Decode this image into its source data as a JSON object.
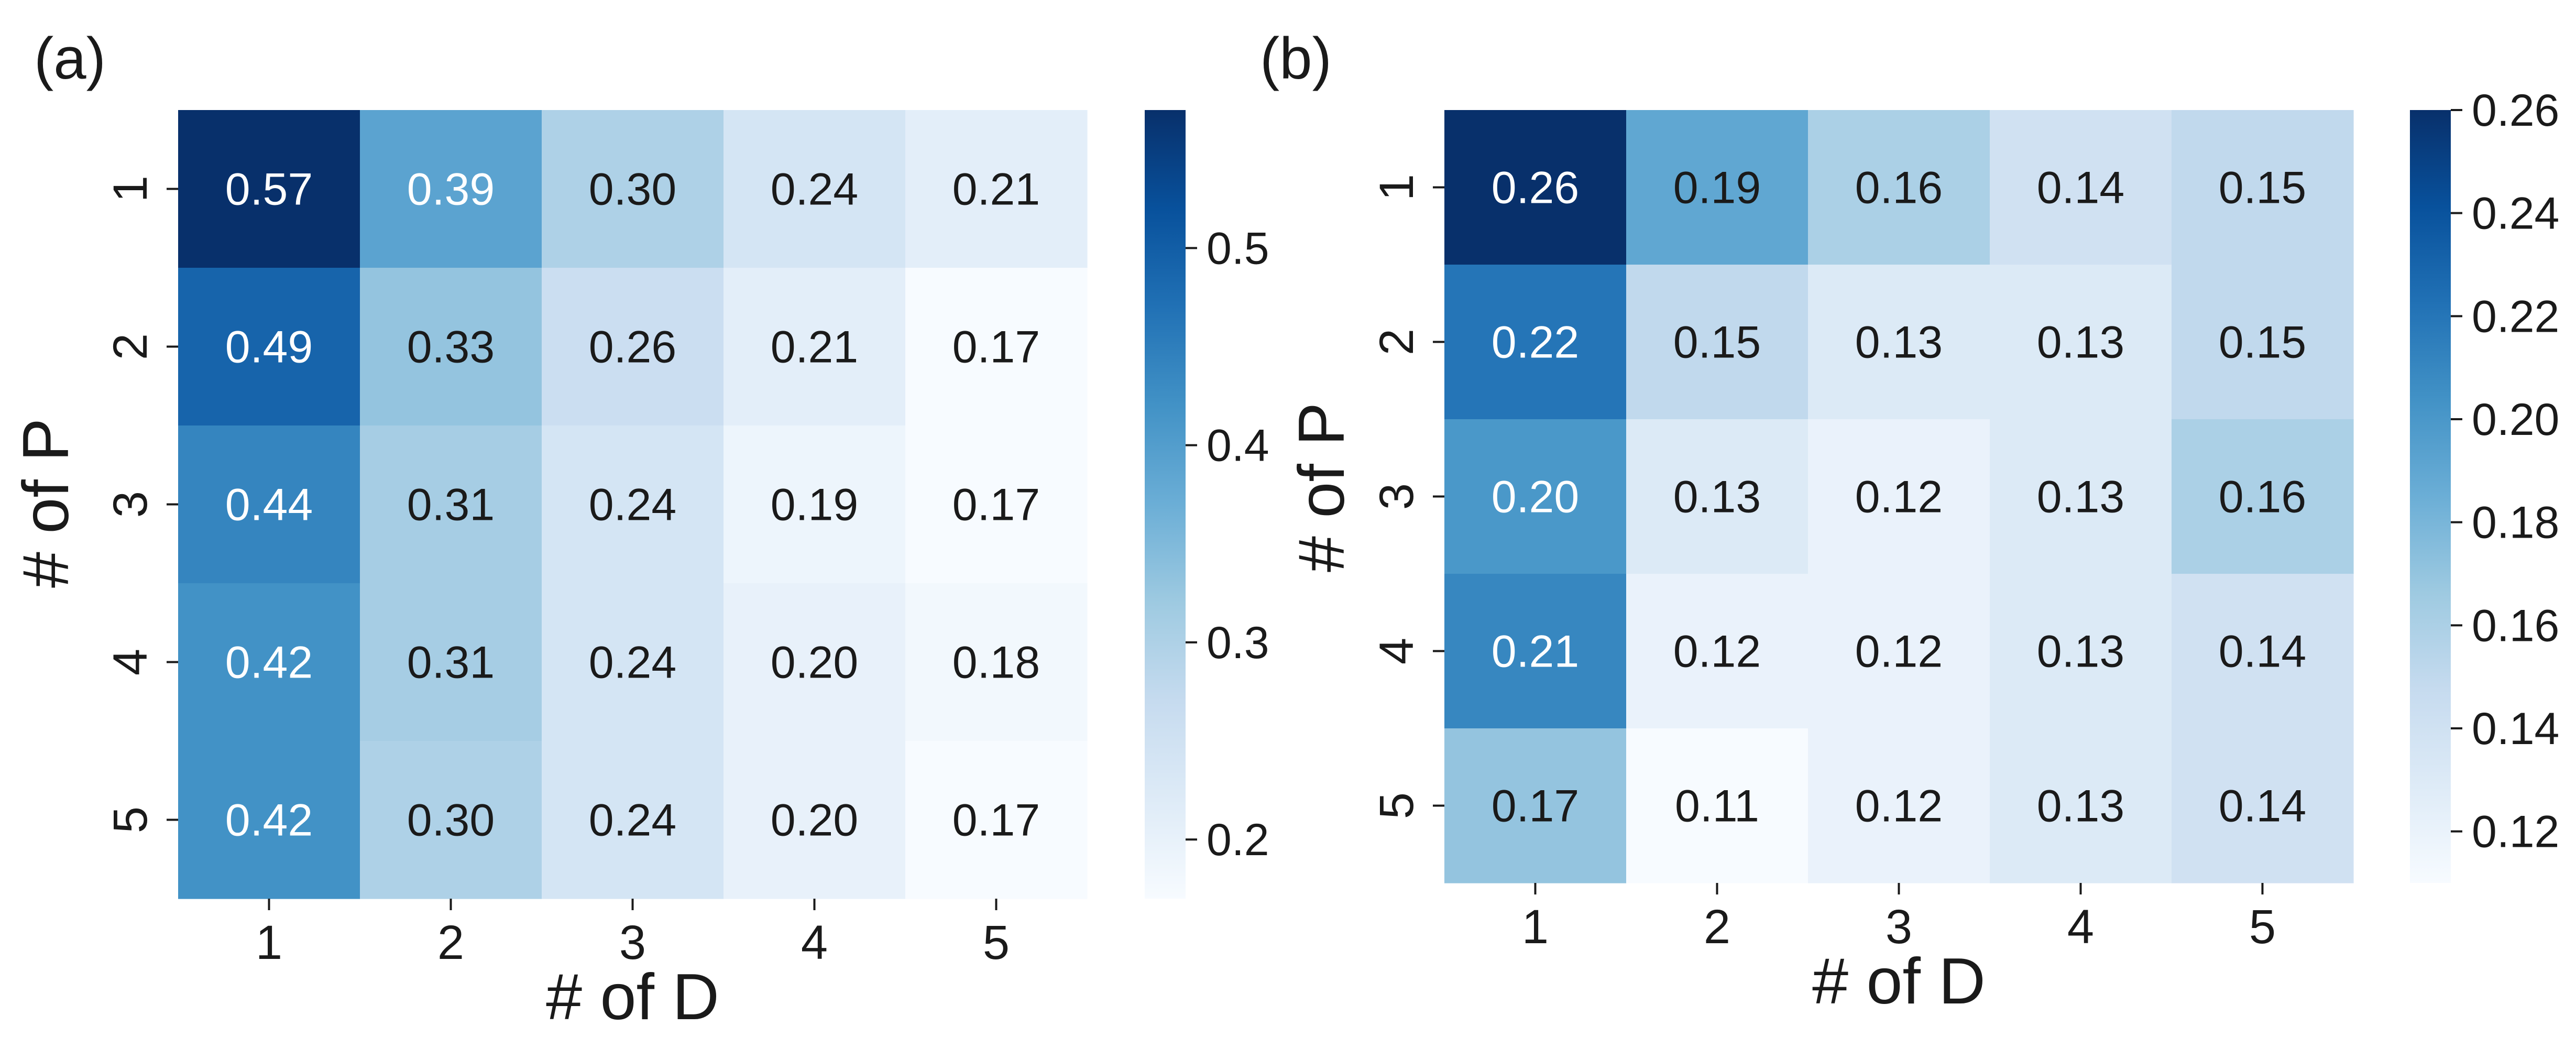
{
  "chart_data": [
    {
      "type": "heatmap",
      "panel_label": "(a)",
      "xlabel": "# of D",
      "ylabel": "# of P",
      "x_categories": [
        "1",
        "2",
        "3",
        "4",
        "5"
      ],
      "y_categories": [
        "1",
        "2",
        "3",
        "4",
        "5"
      ],
      "values": [
        [
          0.57,
          0.39,
          0.3,
          0.24,
          0.21
        ],
        [
          0.49,
          0.33,
          0.26,
          0.21,
          0.17
        ],
        [
          0.44,
          0.31,
          0.24,
          0.19,
          0.17
        ],
        [
          0.42,
          0.31,
          0.24,
          0.2,
          0.18
        ],
        [
          0.42,
          0.3,
          0.24,
          0.2,
          0.17
        ]
      ],
      "value_labels": [
        [
          "0.57",
          "0.39",
          "0.30",
          "0.24",
          "0.21"
        ],
        [
          "0.49",
          "0.33",
          "0.26",
          "0.21",
          "0.17"
        ],
        [
          "0.44",
          "0.31",
          "0.24",
          "0.19",
          "0.17"
        ],
        [
          "0.42",
          "0.31",
          "0.24",
          "0.20",
          "0.18"
        ],
        [
          "0.42",
          "0.30",
          "0.24",
          "0.20",
          "0.17"
        ]
      ],
      "colormap": "Blues",
      "colorbar": {
        "vmin": 0.17,
        "vmax": 0.57,
        "ticks": [
          0.2,
          0.3,
          0.4,
          0.5
        ],
        "tick_labels": [
          "0.2",
          "0.3",
          "0.4",
          "0.5"
        ]
      }
    },
    {
      "type": "heatmap",
      "panel_label": "(b)",
      "xlabel": "# of D",
      "ylabel": "# of P",
      "x_categories": [
        "1",
        "2",
        "3",
        "4",
        "5"
      ],
      "y_categories": [
        "1",
        "2",
        "3",
        "4",
        "5"
      ],
      "values": [
        [
          0.26,
          0.19,
          0.16,
          0.14,
          0.15
        ],
        [
          0.22,
          0.15,
          0.13,
          0.13,
          0.15
        ],
        [
          0.2,
          0.13,
          0.12,
          0.13,
          0.16
        ],
        [
          0.21,
          0.12,
          0.12,
          0.13,
          0.14
        ],
        [
          0.17,
          0.11,
          0.12,
          0.13,
          0.14
        ]
      ],
      "value_labels": [
        [
          "0.26",
          "0.19",
          "0.16",
          "0.14",
          "0.15"
        ],
        [
          "0.22",
          "0.15",
          "0.13",
          "0.13",
          "0.15"
        ],
        [
          "0.20",
          "0.13",
          "0.12",
          "0.13",
          "0.16"
        ],
        [
          "0.21",
          "0.12",
          "0.12",
          "0.13",
          "0.14"
        ],
        [
          "0.17",
          "0.11",
          "0.12",
          "0.13",
          "0.14"
        ]
      ],
      "colormap": "Blues",
      "colorbar": {
        "vmin": 0.11,
        "vmax": 0.26,
        "ticks": [
          0.12,
          0.14,
          0.16,
          0.18,
          0.2,
          0.22,
          0.24,
          0.26
        ],
        "tick_labels": [
          "0.12",
          "0.14",
          "0.16",
          "0.18",
          "0.20",
          "0.22",
          "0.24",
          "0.26"
        ]
      }
    }
  ]
}
